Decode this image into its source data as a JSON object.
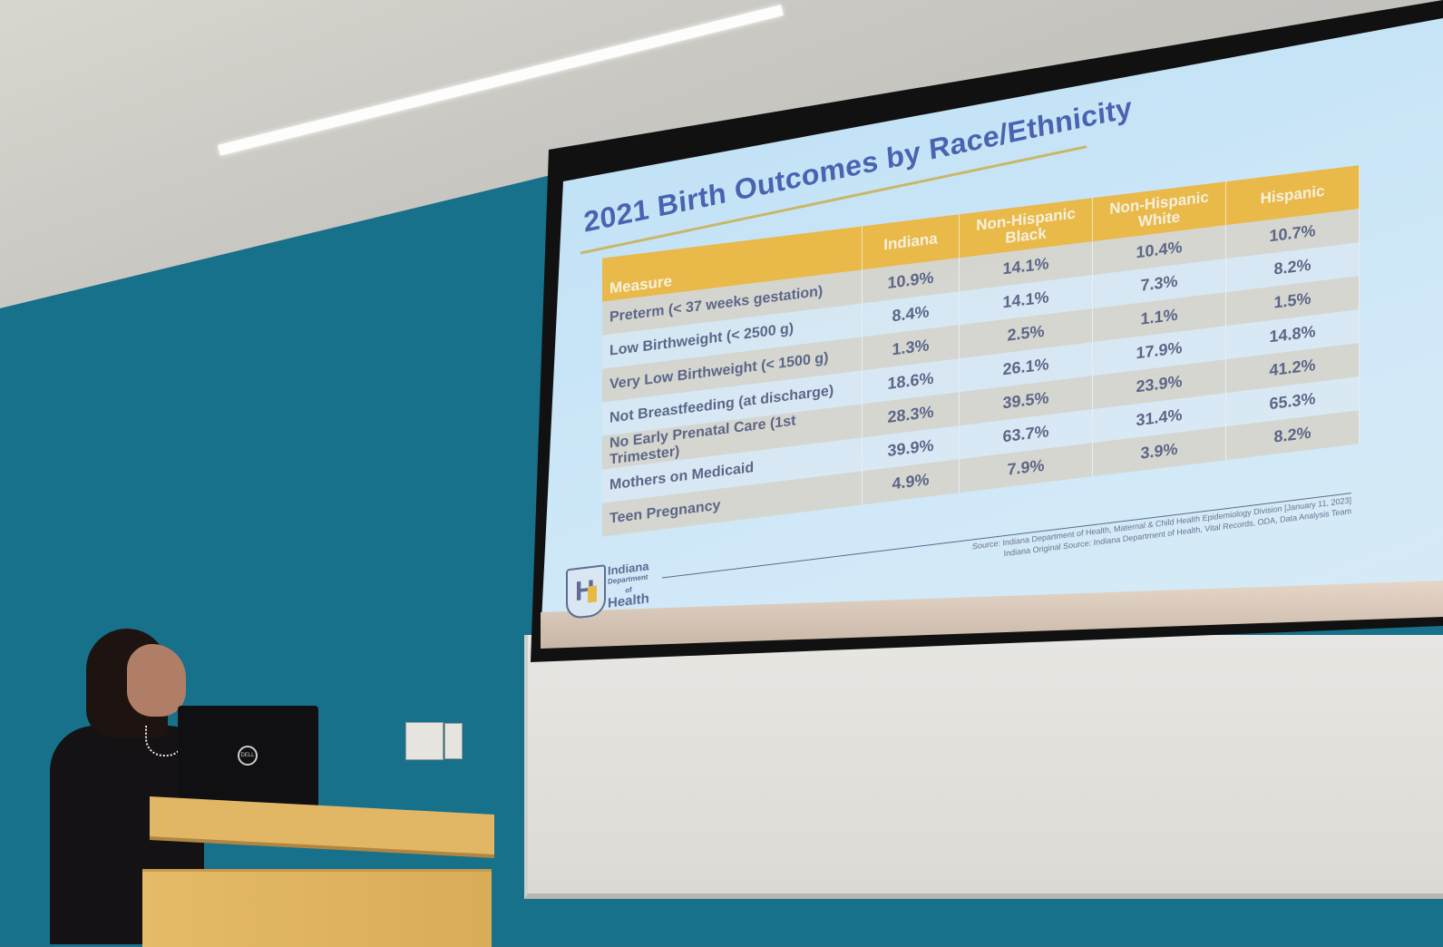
{
  "scene": {
    "description": "Presenter at a lectern looking up at a projected slide in a classroom",
    "colors": {
      "wall": "#17718a",
      "slide_background": "#cfe8f8",
      "title_text": "#4a63b0",
      "table_header": "#e9b94a",
      "table_text": "#5c6688",
      "lectern": "#e1b766"
    },
    "laptop_brand": "DELL"
  },
  "slide": {
    "title": "2021 Birth Outcomes by Race/Ethnicity",
    "table": {
      "headers": [
        "Measure",
        "Indiana",
        "Non-Hispanic Black",
        "Non-Hispanic White",
        "Hispanic"
      ],
      "rows": [
        {
          "measure": "Preterm (< 37 weeks gestation)",
          "indiana": "10.9%",
          "nh_black": "14.1%",
          "nh_white": "10.4%",
          "hispanic": "10.7%"
        },
        {
          "measure": "Low Birthweight (< 2500 g)",
          "indiana": "8.4%",
          "nh_black": "14.1%",
          "nh_white": "7.3%",
          "hispanic": "8.2%"
        },
        {
          "measure": "Very Low Birthweight (< 1500 g)",
          "indiana": "1.3%",
          "nh_black": "2.5%",
          "nh_white": "1.1%",
          "hispanic": "1.5%"
        },
        {
          "measure": "Not Breastfeeding (at discharge)",
          "indiana": "18.6%",
          "nh_black": "26.1%",
          "nh_white": "17.9%",
          "hispanic": "14.8%"
        },
        {
          "measure": "No Early Prenatal Care (1st Trimester)",
          "indiana": "28.3%",
          "nh_black": "39.5%",
          "nh_white": "23.9%",
          "hispanic": "41.2%"
        },
        {
          "measure": "Mothers on Medicaid",
          "indiana": "39.9%",
          "nh_black": "63.7%",
          "nh_white": "31.4%",
          "hispanic": "65.3%"
        },
        {
          "measure": "Teen Pregnancy",
          "indiana": "4.9%",
          "nh_black": "7.9%",
          "nh_white": "3.9%",
          "hispanic": "8.2%"
        }
      ]
    },
    "logo": {
      "line1": "Indiana",
      "line2": "Department",
      "line3": "of",
      "line4": "Health",
      "glyph": "H"
    },
    "source": {
      "line1": "Source: Indiana Department of Health, Maternal & Child Health Epidemiology Division [January 11, 2023]",
      "line2": "Indiana Original Source: Indiana Department of Health, Vital Records, ODA, Data Analysis Team"
    }
  },
  "chart_data": {
    "type": "table",
    "title": "2021 Birth Outcomes by Race/Ethnicity",
    "categories": [
      "Preterm (< 37 weeks gestation)",
      "Low Birthweight (< 2500 g)",
      "Very Low Birthweight (< 1500 g)",
      "Not Breastfeeding (at discharge)",
      "No Early Prenatal Care (1st Trimester)",
      "Mothers on Medicaid",
      "Teen Pregnancy"
    ],
    "series": [
      {
        "name": "Indiana",
        "values": [
          10.9,
          8.4,
          1.3,
          18.6,
          28.3,
          39.9,
          4.9
        ]
      },
      {
        "name": "Non-Hispanic Black",
        "values": [
          14.1,
          14.1,
          2.5,
          26.1,
          39.5,
          63.7,
          7.9
        ]
      },
      {
        "name": "Non-Hispanic White",
        "values": [
          10.4,
          7.3,
          1.1,
          17.9,
          23.9,
          31.4,
          3.9
        ]
      },
      {
        "name": "Hispanic",
        "values": [
          10.7,
          8.2,
          1.5,
          14.8,
          41.2,
          65.3,
          8.2
        ]
      }
    ],
    "unit": "%"
  }
}
